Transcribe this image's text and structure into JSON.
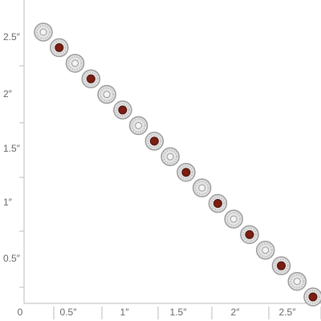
{
  "ruler": {
    "vertical_labels": [
      "2.5″",
      "2″",
      "1.5″",
      "1″",
      "0.5″"
    ],
    "horizontal_labels": [
      "0",
      "0.5″",
      "1″",
      "1.5″",
      "2″",
      "2.5″"
    ]
  }
}
